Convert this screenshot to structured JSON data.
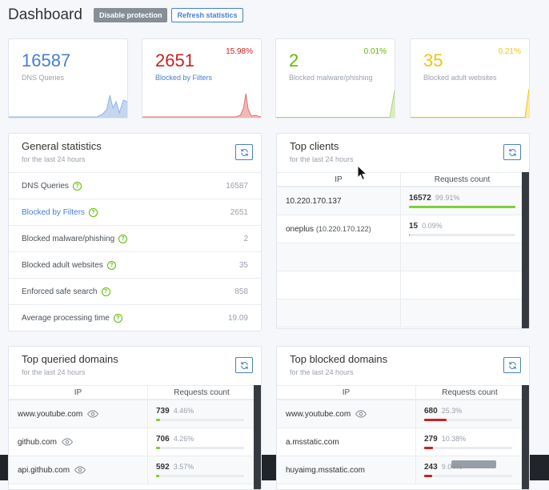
{
  "header": {
    "title": "Dashboard",
    "disable_label": "Disable protection",
    "refresh_label": "Refresh statistics"
  },
  "stats": [
    {
      "value": "16587",
      "label": "DNS Queries",
      "percent": "",
      "color": "#467fcf"
    },
    {
      "value": "2651",
      "label": "Blocked by Filters",
      "percent": "15.98%",
      "color": "#cd201f"
    },
    {
      "value": "2",
      "label": "Blocked malware/phishing",
      "percent": "0.01%",
      "color": "#5eba00"
    },
    {
      "value": "35",
      "label": "Blocked adult websites",
      "percent": "0.21%",
      "color": "#f1c40f"
    }
  ],
  "general": {
    "title": "General statistics",
    "subtitle": "for the last 24 hours",
    "rows": [
      {
        "label": "DNS Queries",
        "value": "16587"
      },
      {
        "label": "Blocked by Filters",
        "value": "2651"
      },
      {
        "label": "Blocked malware/phishing",
        "value": "2"
      },
      {
        "label": "Blocked adult websites",
        "value": "35"
      },
      {
        "label": "Enforced safe search",
        "value": "858"
      },
      {
        "label": "Average processing time",
        "value": "19.09"
      }
    ]
  },
  "clients": {
    "title": "Top clients",
    "subtitle": "for the last 24 hours",
    "col_ip": "IP",
    "col_count": "Requests count",
    "rows": [
      {
        "ip": "10.220.170.137",
        "ip_sub": "",
        "count": "16572",
        "percent": "99.91%",
        "fraction": 0.9991
      },
      {
        "ip": "oneplus",
        "ip_sub": "(10.220.170.122)",
        "count": "15",
        "percent": "0.09%",
        "fraction": 0.0009
      }
    ]
  },
  "queried": {
    "title": "Top queried domains",
    "subtitle": "for the last 24 hours",
    "col_ip": "IP",
    "col_count": "Requests count",
    "rows": [
      {
        "domain": "www.youtube.com",
        "count": "739",
        "percent": "4.46%",
        "fraction": 0.0446
      },
      {
        "domain": "github.com",
        "count": "706",
        "percent": "4.26%",
        "fraction": 0.0426
      },
      {
        "domain": "api.github.com",
        "count": "592",
        "percent": "3.57%",
        "fraction": 0.0357
      }
    ]
  },
  "blocked": {
    "title": "Top blocked domains",
    "subtitle": "for the last 24 hours",
    "col_ip": "IP",
    "col_count": "Requests count",
    "rows": [
      {
        "domain": "www.youtube.com",
        "count": "680",
        "percent": "25.3%",
        "fraction": 0.253
      },
      {
        "domain": "a.msstatic.com",
        "count": "279",
        "percent": "10.38%",
        "fraction": 0.1038
      },
      {
        "domain": "huyaimg.msstatic.com",
        "count": "243",
        "percent": "9.04%",
        "fraction": 0.0904
      }
    ]
  },
  "icons": {
    "refresh": "refresh-icon",
    "help": "question-circle-icon",
    "eye": "eye-icon",
    "cursor": "mouse-cursor-icon"
  }
}
